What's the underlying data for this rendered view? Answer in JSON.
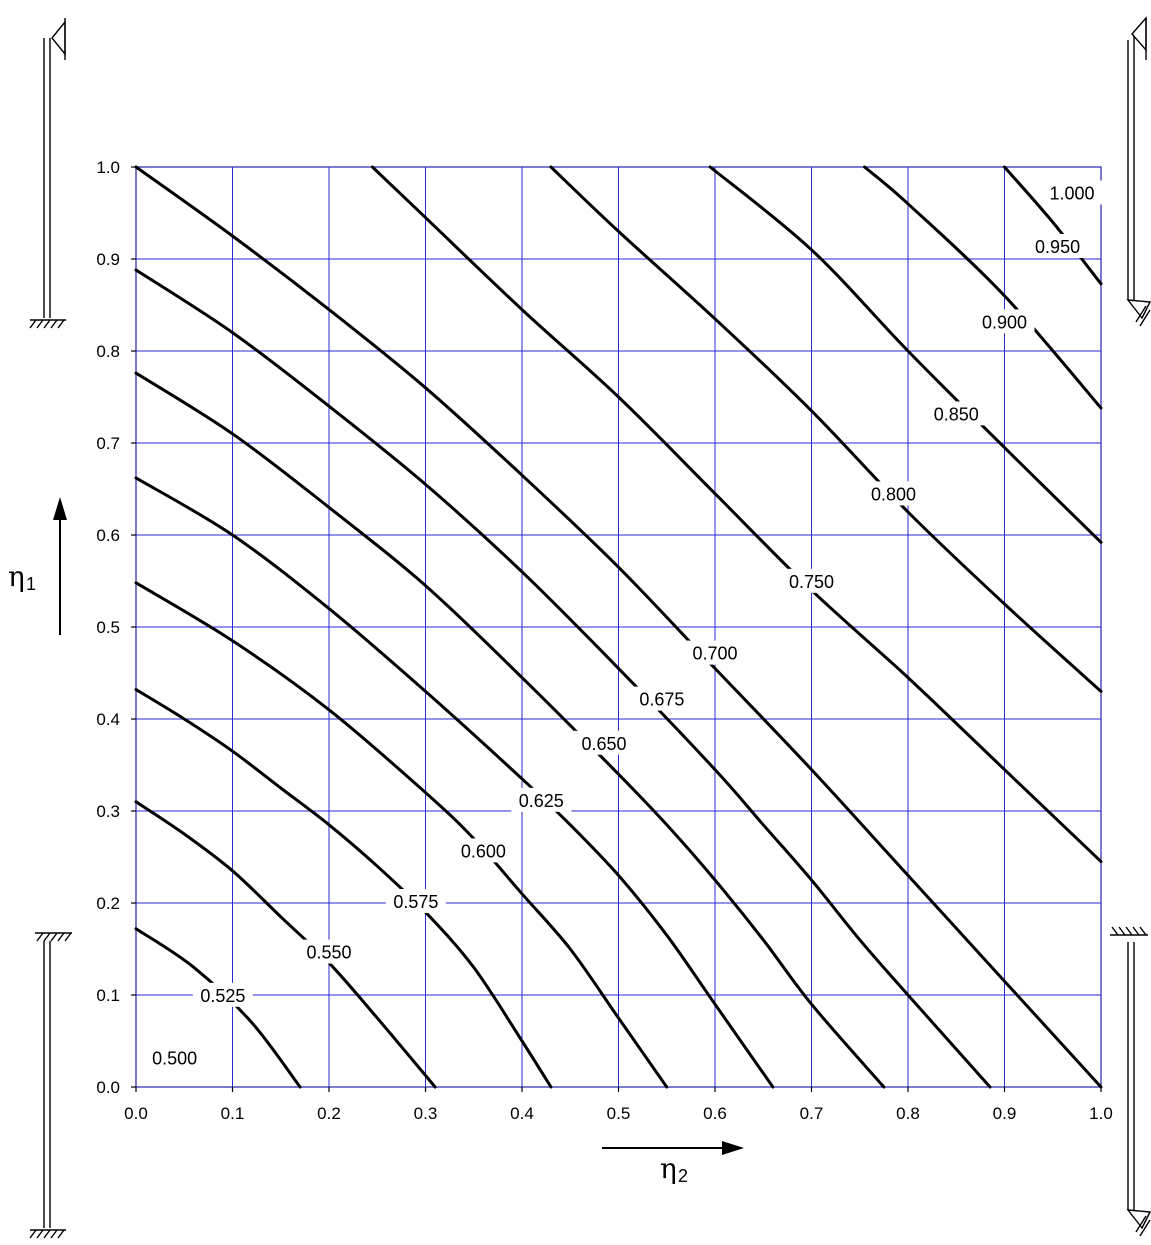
{
  "chart_data": {
    "type": "line",
    "title": "",
    "xlabel": "η",
    "xlabel_sub": "2",
    "ylabel": "η",
    "ylabel_sub": "1",
    "xlim": [
      0,
      1
    ],
    "ylim": [
      0,
      1
    ],
    "grid": true,
    "grid_color": "#2a2ad6",
    "line_color": "#000000",
    "x_ticks": [
      "0.0",
      "0.1",
      "0.2",
      "0.3",
      "0.4",
      "0.5",
      "0.6",
      "0.7",
      "0.8",
      "0.9",
      "1.0"
    ],
    "y_ticks": [
      "0.0",
      "0.1",
      "0.2",
      "0.3",
      "0.4",
      "0.5",
      "0.6",
      "0.7",
      "0.8",
      "0.9",
      "1.0"
    ],
    "series": [
      {
        "name": "0.525",
        "x": [
          0.0,
          0.06,
          0.12,
          0.17
        ],
        "y": [
          0.172,
          0.13,
          0.07,
          0.0
        ],
        "label": {
          "text": "0.525",
          "x": 0.09,
          "y": 0.098
        }
      },
      {
        "name": "0.550",
        "x": [
          0.0,
          0.05,
          0.1,
          0.15,
          0.2,
          0.25,
          0.31
        ],
        "y": [
          0.31,
          0.275,
          0.235,
          0.185,
          0.135,
          0.075,
          0.0
        ],
        "label": {
          "text": "0.550",
          "x": 0.2,
          "y": 0.145
        }
      },
      {
        "name": "0.575",
        "x": [
          0.0,
          0.05,
          0.1,
          0.15,
          0.2,
          0.25,
          0.3,
          0.35,
          0.4,
          0.43
        ],
        "y": [
          0.432,
          0.4,
          0.365,
          0.325,
          0.285,
          0.24,
          0.19,
          0.13,
          0.05,
          0.0
        ],
        "label": {
          "text": "0.575",
          "x": 0.29,
          "y": 0.2
        }
      },
      {
        "name": "0.600",
        "x": [
          0.0,
          0.1,
          0.2,
          0.3,
          0.35,
          0.4,
          0.45,
          0.5,
          0.55
        ],
        "y": [
          0.548,
          0.485,
          0.41,
          0.32,
          0.27,
          0.21,
          0.15,
          0.075,
          0.0
        ],
        "label": {
          "text": "0.600",
          "x": 0.36,
          "y": 0.255
        }
      },
      {
        "name": "0.625",
        "x": [
          0.0,
          0.1,
          0.2,
          0.3,
          0.4,
          0.45,
          0.5,
          0.55,
          0.6,
          0.66
        ],
        "y": [
          0.662,
          0.6,
          0.52,
          0.43,
          0.335,
          0.285,
          0.23,
          0.165,
          0.09,
          0.0
        ],
        "label": {
          "text": "0.625",
          "x": 0.42,
          "y": 0.31
        }
      },
      {
        "name": "0.650",
        "x": [
          0.0,
          0.1,
          0.2,
          0.3,
          0.4,
          0.5,
          0.55,
          0.6,
          0.65,
          0.7,
          0.775
        ],
        "y": [
          0.776,
          0.71,
          0.63,
          0.545,
          0.445,
          0.34,
          0.285,
          0.225,
          0.16,
          0.09,
          0.0
        ],
        "label": {
          "text": "0.650",
          "x": 0.485,
          "y": 0.372
        }
      },
      {
        "name": "0.675",
        "x": [
          0.0,
          0.1,
          0.2,
          0.3,
          0.4,
          0.5,
          0.6,
          0.65,
          0.7,
          0.75,
          0.8,
          0.885
        ],
        "y": [
          0.888,
          0.82,
          0.74,
          0.655,
          0.56,
          0.455,
          0.345,
          0.285,
          0.225,
          0.16,
          0.1,
          0.0
        ],
        "label": {
          "text": "0.675",
          "x": 0.545,
          "y": 0.42
        }
      },
      {
        "name": "0.700",
        "x": [
          0.0,
          0.1,
          0.2,
          0.3,
          0.4,
          0.5,
          0.6,
          0.7,
          0.8,
          0.9,
          1.0
        ],
        "y": [
          1.0,
          0.925,
          0.845,
          0.76,
          0.665,
          0.565,
          0.455,
          0.345,
          0.23,
          0.115,
          0.0
        ],
        "label": {
          "text": "0.700",
          "x": 0.6,
          "y": 0.47
        }
      },
      {
        "name": "0.750",
        "x": [
          0.245,
          0.3,
          0.4,
          0.5,
          0.6,
          0.7,
          0.8,
          0.9,
          1.0
        ],
        "y": [
          1.0,
          0.945,
          0.845,
          0.75,
          0.645,
          0.54,
          0.445,
          0.345,
          0.245
        ],
        "label": {
          "text": "0.750",
          "x": 0.7,
          "y": 0.548
        }
      },
      {
        "name": "0.800",
        "x": [
          0.43,
          0.5,
          0.6,
          0.7,
          0.8,
          0.9,
          1.0
        ],
        "y": [
          1.0,
          0.93,
          0.835,
          0.735,
          0.625,
          0.525,
          0.43
        ],
        "label": {
          "text": "0.800",
          "x": 0.785,
          "y": 0.643
        }
      },
      {
        "name": "0.850",
        "x": [
          0.595,
          0.7,
          0.8,
          0.9,
          1.0
        ],
        "y": [
          1.0,
          0.91,
          0.8,
          0.695,
          0.592
        ],
        "label": {
          "text": "0.850",
          "x": 0.85,
          "y": 0.73
        }
      },
      {
        "name": "0.900",
        "x": [
          0.755,
          0.8,
          0.9,
          1.0
        ],
        "y": [
          1.0,
          0.96,
          0.86,
          0.738
        ],
        "label": {
          "text": "0.900",
          "x": 0.9,
          "y": 0.83
        }
      },
      {
        "name": "0.950",
        "x": [
          0.9,
          0.95,
          1.0
        ],
        "y": [
          1.0,
          0.94,
          0.873
        ],
        "label": {
          "text": "0.950",
          "x": 0.955,
          "y": 0.912
        }
      },
      {
        "name": "1.000",
        "x": [],
        "y": [],
        "label": {
          "text": "1.000",
          "x": 0.97,
          "y": 0.97
        }
      },
      {
        "name": "0.500",
        "x": [],
        "y": [],
        "label": {
          "text": "0.500",
          "x": 0.04,
          "y": 0.03
        }
      }
    ]
  }
}
